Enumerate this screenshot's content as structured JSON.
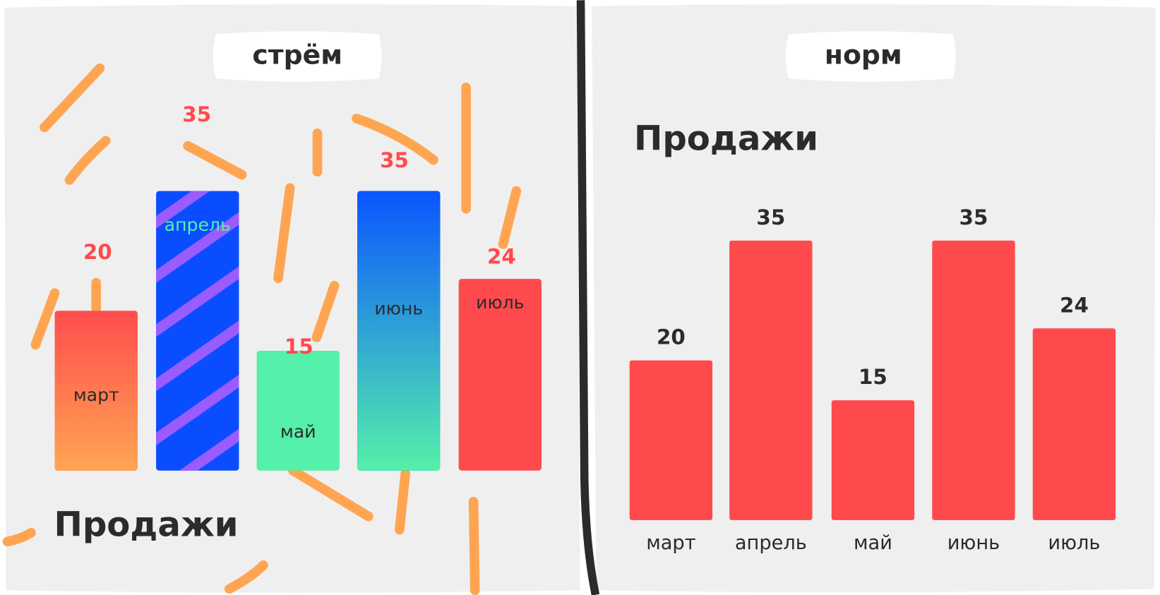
{
  "chart_data": [
    {
      "type": "bar",
      "panel": "стрём",
      "title": "Продажи",
      "categories": [
        "март",
        "апрель",
        "май",
        "июнь",
        "июль"
      ],
      "values": [
        20,
        35,
        15,
        35,
        24
      ],
      "colors": [
        "#ff5a48",
        "#0a4dff",
        "#55f0aa",
        "#0a5aff",
        "#ff4a4d"
      ]
    },
    {
      "type": "bar",
      "panel": "норм",
      "title": "Продажи",
      "categories": [
        "март",
        "апрель",
        "май",
        "июнь",
        "июль"
      ],
      "values": [
        20,
        35,
        15,
        35,
        24
      ],
      "color": "#ff4a4d"
    }
  ]
}
